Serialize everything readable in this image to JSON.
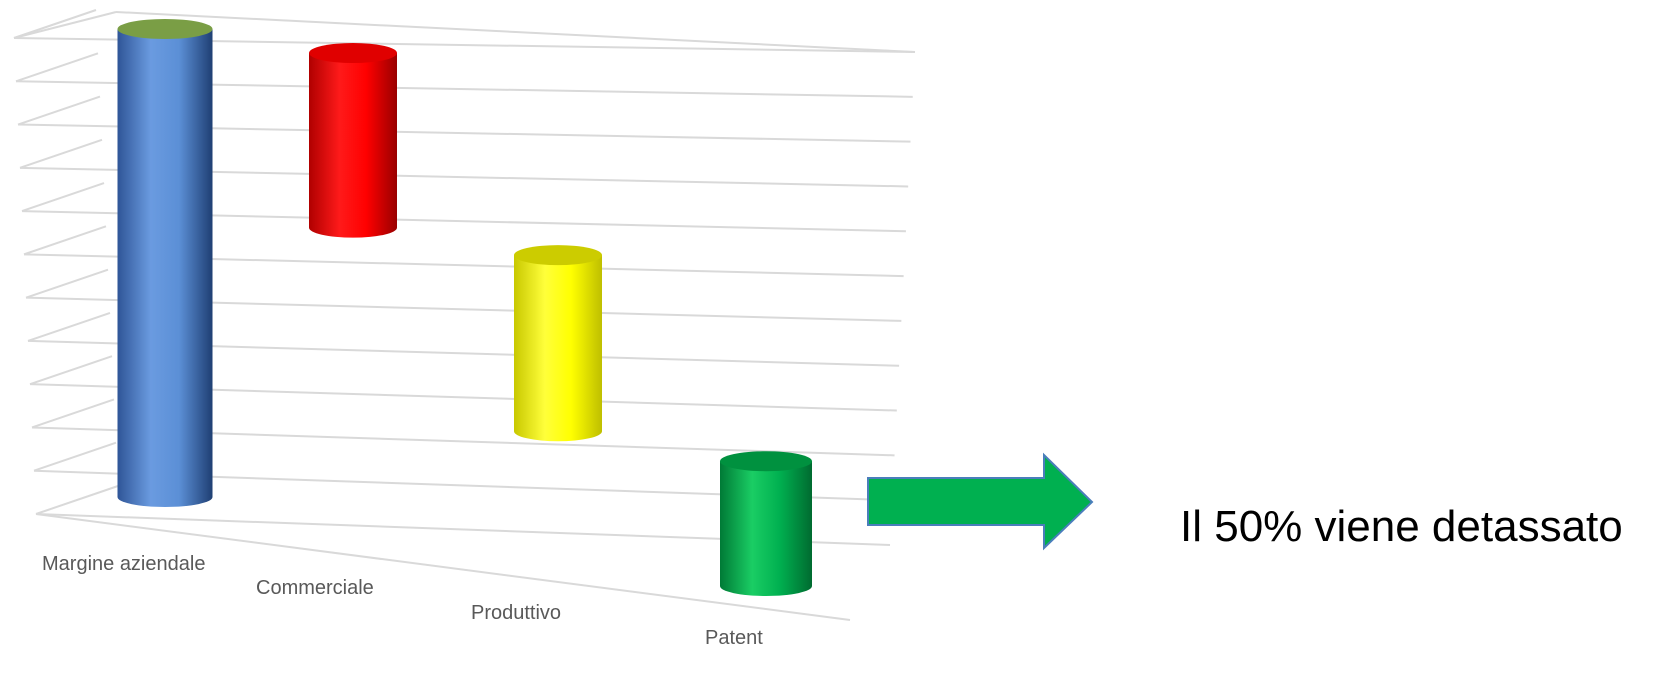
{
  "chart_data": {
    "type": "bar",
    "subtype": "3d-waterfall-cylinder",
    "categories": [
      "Margine aziendale",
      "Commerciale",
      "Produttivo",
      "Patent"
    ],
    "series": [
      {
        "values_start": [
          0,
          63,
          26,
          0
        ],
        "values_end": [
          100,
          100,
          63,
          26
        ]
      }
    ],
    "values": [
      100,
      37,
      37,
      26
    ],
    "colors": [
      "#5B8FD6",
      "#FF0000",
      "#FFFF00",
      "#00B050"
    ],
    "gridlines": 11,
    "ylim": [
      0,
      100
    ],
    "grid": true,
    "title": "",
    "xlabel": "",
    "ylabel": ""
  },
  "callout": {
    "text": "Il 50% viene detassato",
    "arrow_color": "#00B050",
    "arrow_border": "#4A7EBB"
  }
}
